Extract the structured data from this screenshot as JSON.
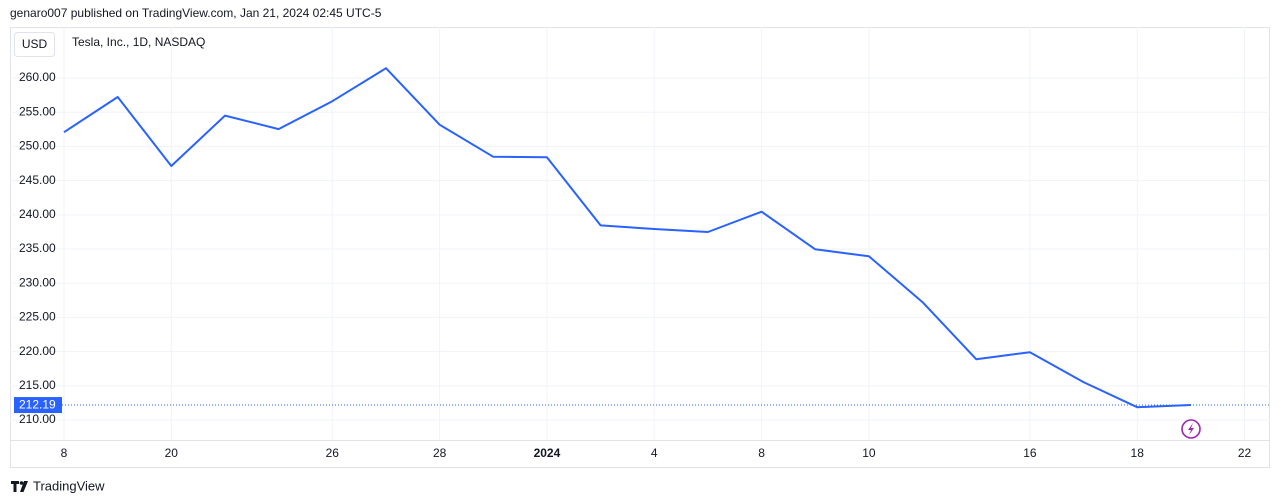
{
  "header": {
    "text": "genaro007 published on TradingView.com, Jan 21, 2024 02:45 UTC-5"
  },
  "chart_data": {
    "type": "line",
    "currency": "USD",
    "subtitle": "Tesla, Inc., 1D, NASDAQ",
    "categories": [
      "8",
      null,
      "20",
      null,
      null,
      "26",
      null,
      "28",
      null,
      "2024",
      null,
      "4",
      null,
      "8",
      null,
      "10",
      null,
      null,
      "16",
      null,
      "18",
      null,
      "22"
    ],
    "series": [
      {
        "color": "#2962ff",
        "values": [
          252.08,
          257.22,
          247.14,
          254.5,
          252.54,
          256.61,
          261.44,
          253.18,
          248.48,
          248.42,
          238.45,
          237.93,
          237.49,
          240.45,
          234.96,
          233.94,
          227.22,
          218.89,
          219.91,
          215.55,
          211.88,
          212.19,
          null
        ]
      }
    ],
    "ylim": [
      207.08,
      267.46
    ],
    "yticks": [
      {
        "value": 210,
        "label": "210.00"
      },
      {
        "value": 215,
        "label": "215.00"
      },
      {
        "value": 220,
        "label": "220.00"
      },
      {
        "value": 225,
        "label": "225.00"
      },
      {
        "value": 230,
        "label": "230.00"
      },
      {
        "value": 235,
        "label": "235.00"
      },
      {
        "value": 240,
        "label": "240.00"
      },
      {
        "value": 245,
        "label": "245.00"
      },
      {
        "value": 250,
        "label": "250.00"
      },
      {
        "value": 255,
        "label": "255.00"
      },
      {
        "value": 260,
        "label": "260.00"
      }
    ],
    "grid": true
  },
  "footer": {
    "brand": "TradingView"
  }
}
